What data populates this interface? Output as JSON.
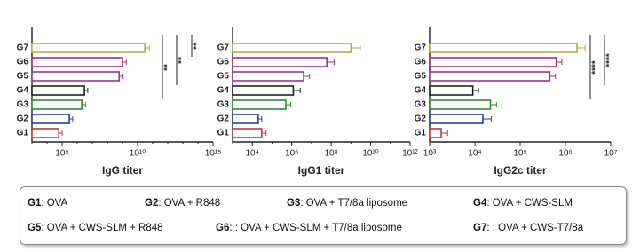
{
  "chart_data": [
    {
      "type": "bar",
      "orientation": "horizontal",
      "x_label": "IgG titer",
      "log_scale": true,
      "categories": [
        "G1",
        "G2",
        "G3",
        "G4",
        "G5",
        "G6",
        "G7"
      ],
      "colors": [
        "#c8383a",
        "#2d3f9c",
        "#2f8a33",
        "#222222",
        "#953a86",
        "#a2307b",
        "#b4ae4c"
      ],
      "values": [
        60000,
        300000,
        2000000,
        3000000,
        600000000,
        1000000000,
        30000000000
      ],
      "errors": [
        40000,
        200000,
        1500000,
        2000000,
        500000000,
        800000000,
        30000000000
      ],
      "xlim": [
        1000,
        1000000000000000
      ],
      "xticks": [
        {
          "value": 100000,
          "label": "10⁵"
        },
        {
          "value": 10000000000,
          "label": "10¹⁰"
        },
        {
          "value": 1000000000000000,
          "label": "10¹⁵"
        }
      ],
      "annotations": [
        "**",
        "**",
        "**"
      ]
    },
    {
      "type": "bar",
      "orientation": "horizontal",
      "x_label": "IgG1 titer",
      "log_scale": true,
      "categories": [
        "G1",
        "G2",
        "G3",
        "G4",
        "G5",
        "G6",
        "G7"
      ],
      "colors": [
        "#c8383a",
        "#2d3f9c",
        "#2f8a33",
        "#222222",
        "#953a86",
        "#a2307b",
        "#b4ae4c"
      ],
      "values": [
        30000,
        20000,
        500000,
        1200000,
        4000000,
        60000000,
        1000000000
      ],
      "errors": [
        20000,
        10000,
        400000,
        1500000,
        4000000,
        80000000,
        2000000000
      ],
      "xlim": [
        1000,
        1000000000000
      ],
      "xticks": [
        {
          "value": 10000,
          "label": "10⁴"
        },
        {
          "value": 1000000,
          "label": "10⁶"
        },
        {
          "value": 100000000,
          "label": "10⁸"
        },
        {
          "value": 10000000000,
          "label": "10¹⁰"
        },
        {
          "value": 1000000000000,
          "label": "10¹²"
        }
      ],
      "annotations": []
    },
    {
      "type": "bar",
      "orientation": "horizontal",
      "x_label": "IgG2c titer",
      "log_scale": true,
      "categories": [
        "G1",
        "G2",
        "G3",
        "G4",
        "G5",
        "G6",
        "G7"
      ],
      "colors": [
        "#c8383a",
        "#2d3f9c",
        "#2f8a33",
        "#222222",
        "#953a86",
        "#a2307b",
        "#b4ae4c"
      ],
      "values": [
        1800,
        15000,
        22000,
        9000,
        450000,
        630000,
        1800000
      ],
      "errors": [
        700,
        8000,
        8000,
        3000,
        150000,
        200000,
        900000
      ],
      "xlim": [
        1000,
        10000000
      ],
      "xticks": [
        {
          "value": 1000,
          "label": "10³"
        },
        {
          "value": 10000,
          "label": "10⁴"
        },
        {
          "value": 100000,
          "label": "10⁵"
        },
        {
          "value": 1000000,
          "label": "10⁶"
        },
        {
          "value": 10000000,
          "label": "10⁷"
        }
      ],
      "annotations": [
        "****",
        "****"
      ]
    }
  ],
  "legend_box": {
    "items": [
      {
        "key": "G1",
        "text": ": OVA"
      },
      {
        "key": "G2",
        "text": ": OVA + R848"
      },
      {
        "key": "G3",
        "text": ": OVA + T7/8a liposome"
      },
      {
        "key": "G4",
        "text": ": OVA + CWS-SLM"
      },
      {
        "key": "G5",
        "text": ": OVA + CWS-SLM + R848"
      },
      {
        "key": "G6",
        "text": ": : OVA + CWS-SLM + T7/8a liposome"
      },
      {
        "key": "G7",
        "text": ": : OVA + CWS-T7/8a"
      }
    ]
  }
}
